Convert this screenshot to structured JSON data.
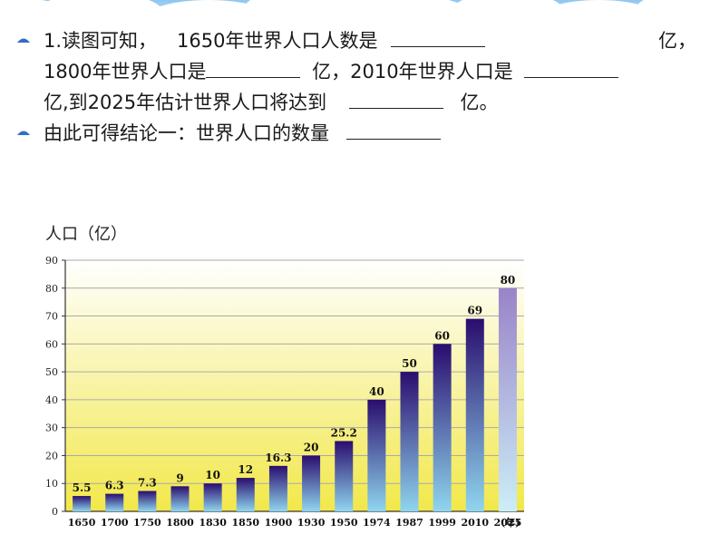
{
  "slide": {
    "q1_p1": "1.读图可知，",
    "q1_p2": "1650年世界人口人数是",
    "q1_p3": "亿，",
    "q1_p4": "1800年世界人口是",
    "q1_p5": "亿，2010年世界人口是",
    "q1_p6": "亿,到2025年估计世界人口将达到",
    "q1_p7": "亿。",
    "q2": "由此可得结论一：世界人口的数量"
  },
  "chart_data": {
    "type": "bar",
    "ylabel": "人口（亿）",
    "xunit": "(年)",
    "categories": [
      "1650",
      "1700",
      "1750",
      "1800",
      "1830",
      "1850",
      "1900",
      "1930",
      "1950",
      "1974",
      "1987",
      "1999",
      "2010",
      "2025"
    ],
    "values": [
      5.5,
      6.3,
      7.3,
      9,
      10,
      12,
      16.3,
      20,
      25.2,
      40,
      50,
      60,
      69,
      80
    ],
    "value_labels": [
      "5.5",
      "6.3",
      "7.3",
      "9",
      "10",
      "12",
      "16.3",
      "20",
      "25.2",
      "40",
      "50",
      "60",
      "69",
      "80"
    ],
    "yticks": [
      0,
      10,
      20,
      30,
      40,
      50,
      60,
      70,
      80,
      90
    ],
    "ylim": [
      0,
      90
    ],
    "grid": true,
    "estimated_index": 13,
    "colors": {
      "bar_top": "#2a0d6e",
      "bar_bottom": "#8fd6ef",
      "bar_est_top": "#9a83c8",
      "bar_est_bottom": "#cbeef8",
      "bg_top": "#ffffff",
      "bg_bottom": "#f2e84a",
      "bullet": "#2d6fc4"
    }
  }
}
